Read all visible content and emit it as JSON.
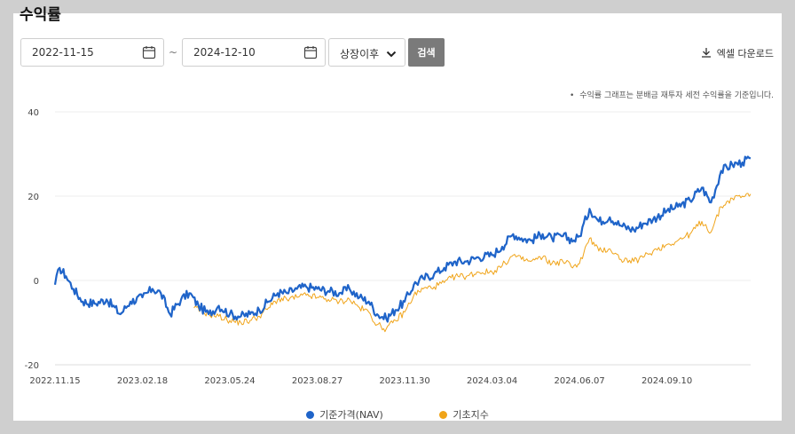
{
  "page": {
    "title": "수익률"
  },
  "filters": {
    "start_date": "2022-11-15",
    "end_date": "2024-12-10",
    "separator": "~",
    "period_select": "상장이후",
    "search_label": "검색"
  },
  "toolbar": {
    "excel_label": "엑셀 다운로드"
  },
  "note": {
    "bullet": "•",
    "text": "수익률 그래프는 분배금 재투자 세전 수익률을 기준입니다."
  },
  "colors": {
    "nav": "#1f64c9",
    "index": "#f0a419",
    "grid": "#eeeeee",
    "axis": "#dddddd"
  },
  "chart_data": {
    "type": "line",
    "title": "",
    "xlabel": "",
    "ylabel": "",
    "ylim": [
      -20,
      40
    ],
    "yticks": [
      -20,
      0,
      20,
      40
    ],
    "x_range": [
      "2022-11-15",
      "2024-12-10"
    ],
    "xticks": [
      "2022.11.15",
      "2023.02.18",
      "2023.05.24",
      "2023.08.27",
      "2023.11.30",
      "2024.03.04",
      "2024.06.07",
      "2024.09.10"
    ],
    "grid": true,
    "legend_position": "bottom",
    "series": [
      {
        "name": "기준가격(NAV)",
        "color": "#1f64c9",
        "x": [
          "2022-11-15",
          "2022-11-20",
          "2022-11-27",
          "2022-12-05",
          "2022-12-15",
          "2022-12-28",
          "2023-01-10",
          "2023-01-25",
          "2023-02-05",
          "2023-02-18",
          "2023-03-01",
          "2023-03-10",
          "2023-03-20",
          "2023-04-01",
          "2023-04-10",
          "2023-04-20",
          "2023-05-01",
          "2023-05-12",
          "2023-05-24",
          "2023-06-05",
          "2023-06-15",
          "2023-06-25",
          "2023-07-05",
          "2023-07-15",
          "2023-07-25",
          "2023-08-05",
          "2023-08-15",
          "2023-08-27",
          "2023-09-08",
          "2023-09-20",
          "2023-10-01",
          "2023-10-12",
          "2023-10-22",
          "2023-10-31",
          "2023-11-10",
          "2023-11-20",
          "2023-11-30",
          "2023-12-10",
          "2023-12-20",
          "2024-01-01",
          "2024-01-12",
          "2024-01-24",
          "2024-02-05",
          "2024-02-18",
          "2024-03-04",
          "2024-03-15",
          "2024-03-27",
          "2024-04-05",
          "2024-04-15",
          "2024-04-28",
          "2024-05-08",
          "2024-05-20",
          "2024-06-01",
          "2024-06-07",
          "2024-06-18",
          "2024-06-28",
          "2024-07-10",
          "2024-07-22",
          "2024-08-05",
          "2024-08-15",
          "2024-08-26",
          "2024-09-10",
          "2024-09-22",
          "2024-10-05",
          "2024-10-18",
          "2024-10-28",
          "2024-11-08",
          "2024-11-20",
          "2024-12-01",
          "2024-12-10"
        ],
        "values": [
          -1.0,
          3.0,
          1.0,
          -2.0,
          -5.0,
          -5.5,
          -4.5,
          -8.0,
          -5.0,
          -4.0,
          -2.0,
          -3.0,
          -8.0,
          -4.5,
          -3.0,
          -6.0,
          -8.0,
          -6.0,
          -8.0,
          -8.5,
          -8.0,
          -7.0,
          -5.0,
          -3.0,
          -3.0,
          -2.0,
          -1.5,
          -2.0,
          -2.5,
          -3.0,
          -2.0,
          -4.0,
          -5.0,
          -8.0,
          -9.0,
          -7.0,
          -5.0,
          -1.0,
          0.5,
          1.5,
          3.0,
          4.5,
          4.5,
          5.5,
          6.0,
          8.0,
          11.0,
          10.0,
          9.5,
          11.0,
          10.0,
          10.5,
          9.5,
          10.5,
          17.0,
          14.0,
          15.0,
          13.0,
          12.0,
          13.5,
          14.5,
          16.5,
          17.5,
          19.0,
          22.0,
          18.5,
          26.0,
          27.5,
          28.0,
          29.0
        ]
      },
      {
        "name": "기초지수",
        "color": "#f0a419",
        "x": [
          "2023-04-15",
          "2023-05-01",
          "2023-05-12",
          "2023-05-24",
          "2023-06-05",
          "2023-06-15",
          "2023-06-25",
          "2023-07-05",
          "2023-07-15",
          "2023-07-25",
          "2023-08-05",
          "2023-08-15",
          "2023-08-27",
          "2023-09-08",
          "2023-09-20",
          "2023-10-01",
          "2023-10-12",
          "2023-10-22",
          "2023-10-31",
          "2023-11-10",
          "2023-11-20",
          "2023-11-30",
          "2023-12-10",
          "2023-12-20",
          "2024-01-01",
          "2024-01-12",
          "2024-01-24",
          "2024-02-05",
          "2024-02-18",
          "2024-03-04",
          "2024-03-15",
          "2024-03-27",
          "2024-04-05",
          "2024-04-15",
          "2024-04-28",
          "2024-05-08",
          "2024-05-20",
          "2024-06-01",
          "2024-06-07",
          "2024-06-18",
          "2024-06-28",
          "2024-07-10",
          "2024-07-22",
          "2024-08-05",
          "2024-08-15",
          "2024-08-26",
          "2024-09-10",
          "2024-09-22",
          "2024-10-05",
          "2024-10-18",
          "2024-10-28",
          "2024-11-08",
          "2024-11-20",
          "2024-12-01",
          "2024-12-10"
        ],
        "values": [
          -6.5,
          -8.0,
          -8.5,
          -9.5,
          -10.0,
          -9.5,
          -8.5,
          -6.5,
          -4.5,
          -4.5,
          -4.0,
          -3.5,
          -4.0,
          -4.5,
          -5.0,
          -4.5,
          -6.5,
          -7.5,
          -10.5,
          -11.5,
          -9.5,
          -7.5,
          -3.5,
          -2.0,
          -1.5,
          -0.5,
          1.0,
          1.0,
          2.0,
          2.0,
          3.5,
          6.0,
          5.0,
          4.5,
          5.5,
          4.0,
          4.5,
          3.5,
          4.0,
          10.0,
          7.0,
          7.5,
          5.0,
          4.5,
          5.5,
          7.0,
          8.5,
          9.5,
          11.0,
          14.0,
          11.5,
          17.5,
          19.5,
          20.0,
          20.5
        ]
      }
    ]
  }
}
